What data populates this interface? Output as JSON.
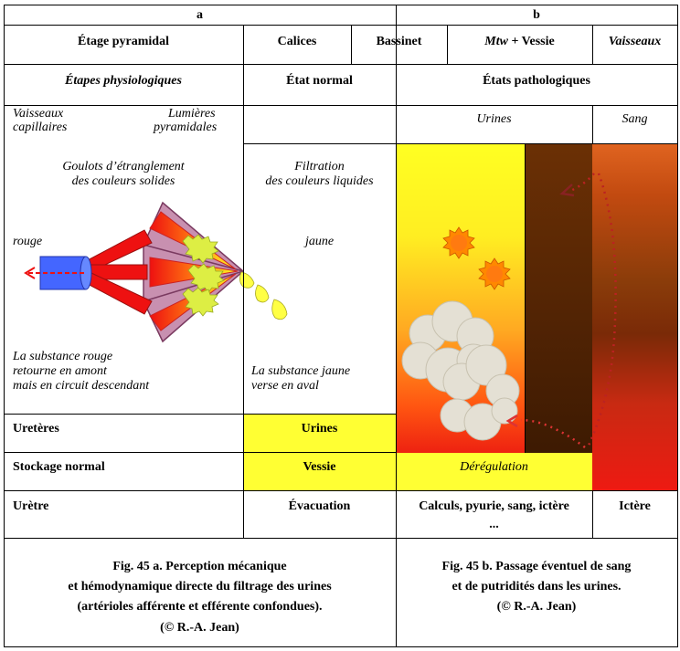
{
  "headers": {
    "a": "a",
    "b": "b"
  },
  "row2": {
    "etage": "Étage pyramidal",
    "calices": "Calices",
    "bassinet": "Bassinet",
    "mtw": "Mtw",
    "vessie": " + Vessie",
    "vaisseaux": "Vaisseaux"
  },
  "row3": {
    "etapes": "Étapes physiologiques",
    "etat_normal": "État normal",
    "etats_patho": "États pathologiques"
  },
  "diagram_a": {
    "vaisseaux_line1": "Vaisseaux",
    "vaisseaux_line2": "capillaires",
    "lumieres_line1": "Lumières",
    "lumieres_line2": "pyramidales",
    "goulots_line1": "Goulots d’étranglement",
    "goulots_line2": "des couleurs solides",
    "rouge": "rouge",
    "substance_rouge_line1": "La substance rouge",
    "substance_rouge_line2": "retourne en amont",
    "substance_rouge_line3": "mais en circuit descendant"
  },
  "diagram_normal": {
    "filtration_line1": "Filtration",
    "filtration_line2": "des couleurs liquides",
    "jaune": "jaune",
    "substance_jaune_line1": "La substance jaune",
    "substance_jaune_line2": "verse en aval"
  },
  "diagram_b": {
    "urines": "Urines",
    "sang": "Sang",
    "deregulation": "Dérégulation"
  },
  "rows": {
    "ureteres": "Uretères",
    "urines": "Urines",
    "stockage": "Stockage normal",
    "vessie": "Vessie",
    "uretre": "Urètre",
    "evacuation": "Évacuation",
    "calculs": "Calculs, pyurie, sang, ictère",
    "ellipsis": "...",
    "ictere": "Ictère"
  },
  "captions": {
    "a_line1": "Fig. 45 a. Perception mécanique",
    "a_line2": "et hémodynamique directe du filtrage des urines",
    "a_line3": "(artérioles afférente et efférente confondues).",
    "a_line4": "(© R.-A. Jean)",
    "b_line1": "Fig. 45 b. Passage éventuel de sang",
    "b_line2": "et de putridités dans les urines.",
    "b_line3": "(© R.-A. Jean)"
  },
  "colors": {
    "yellow": "#ffff33",
    "red": "#ee1111",
    "blue": "#4466ff",
    "pyramid": "#c890b0",
    "orange": "#ff8c1a"
  }
}
